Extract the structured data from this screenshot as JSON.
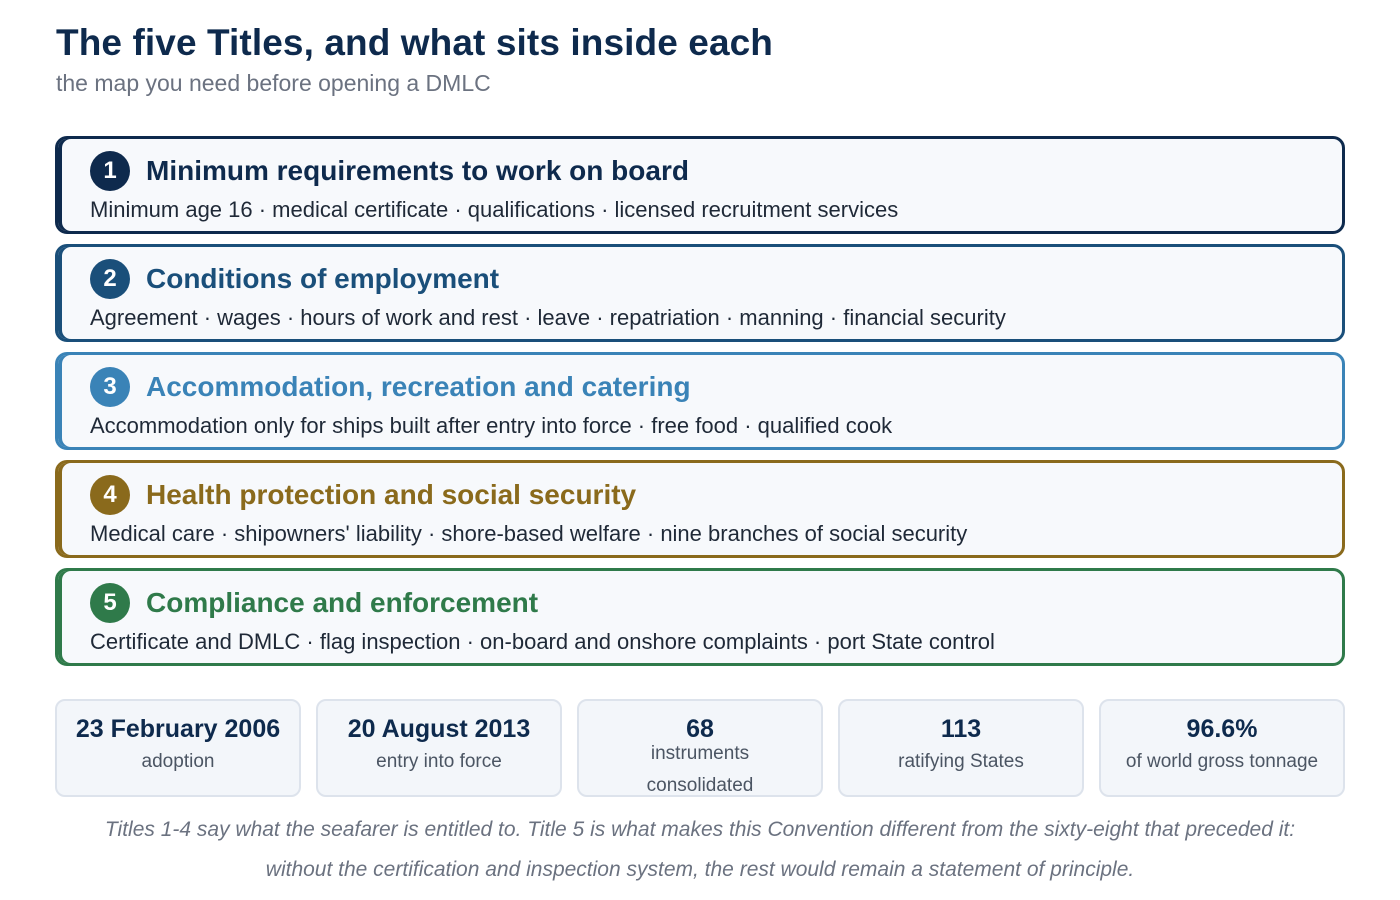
{
  "header": {
    "title": "The five Titles, and what sits inside each",
    "subtitle": "the map you need before opening a DMLC"
  },
  "titles": [
    {
      "number": "1",
      "heading": "Minimum requirements to work on board",
      "items": "Minimum age 16 · medical certificate · qualifications · licensed recruitment services",
      "color": "#0e2a4d"
    },
    {
      "number": "2",
      "heading": "Conditions of employment",
      "items": "Agreement · wages · hours of work and rest · leave · repatriation · manning · financial security",
      "color": "#1a4f7a"
    },
    {
      "number": "3",
      "heading": "Accommodation, recreation and catering",
      "items": "Accommodation only for ships built after entry into force · free food · qualified cook",
      "color": "#3a83b7"
    },
    {
      "number": "4",
      "heading": "Health protection and social security",
      "items": "Medical care · shipowners' liability · shore-based welfare · nine branches of social security",
      "color": "#8a6a1c"
    },
    {
      "number": "5",
      "heading": "Compliance and enforcement",
      "items": "Certificate and DMLC · flag inspection · on-board and onshore complaints · port State control",
      "color": "#2f7a4a"
    }
  ],
  "stats": [
    {
      "value": "23 February 2006",
      "label": "adoption"
    },
    {
      "value": "20 August 2013",
      "label": "entry into force"
    },
    {
      "value": "68",
      "label": "instruments consolidated"
    },
    {
      "value": "113",
      "label": "ratifying States"
    },
    {
      "value": "96.6%",
      "label": "of world gross tonnage"
    }
  ],
  "footnote": "Titles 1-4 say what the seafarer is entitled to. Title 5 is what makes this Convention different from the sixty-eight that preceded it: without the certification and inspection system, the rest would remain a statement of principle."
}
